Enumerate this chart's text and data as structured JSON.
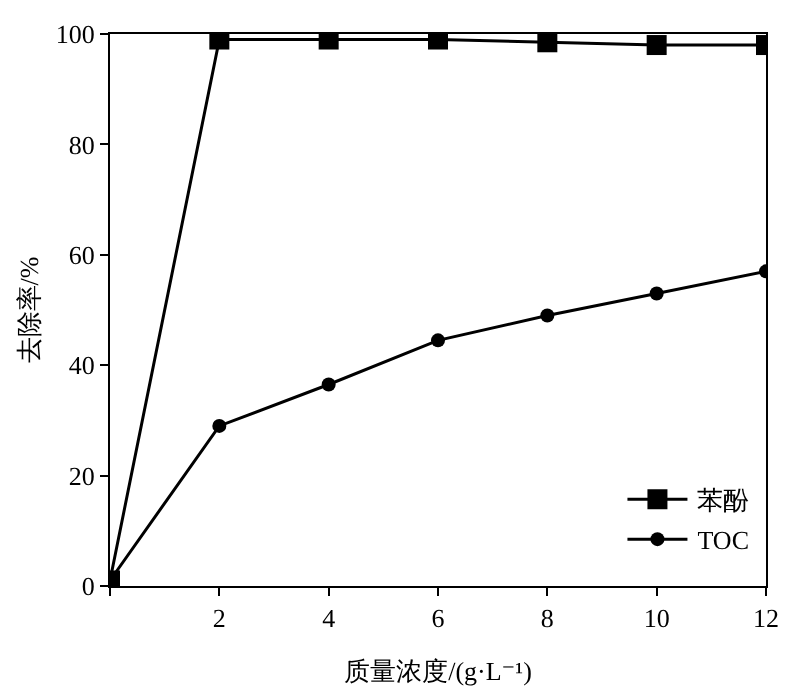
{
  "chart_data": {
    "type": "line",
    "xlabel": "质量浓度/(g·L⁻¹)",
    "ylabel": "去除率/%",
    "x": [
      0,
      2,
      4,
      6,
      8,
      10,
      12
    ],
    "series": [
      {
        "name": "苯酚",
        "color": "#000000",
        "marker": "square",
        "values": [
          1,
          99,
          99,
          99,
          98.5,
          98,
          98
        ]
      },
      {
        "name": "TOC",
        "color": "#000000",
        "marker": "circle",
        "values": [
          1,
          29,
          36.5,
          44.5,
          49,
          53,
          57
        ]
      }
    ],
    "xlim": [
      0,
      12
    ],
    "xticks": [
      {
        "value": 0,
        "label": null
      },
      2,
      4,
      6,
      8,
      10,
      12
    ],
    "ylim": [
      0,
      100
    ],
    "yticks": [
      0,
      20,
      40,
      60,
      80,
      100
    ],
    "grid": false,
    "legend": "bottom right",
    "line_style": "solid"
  }
}
